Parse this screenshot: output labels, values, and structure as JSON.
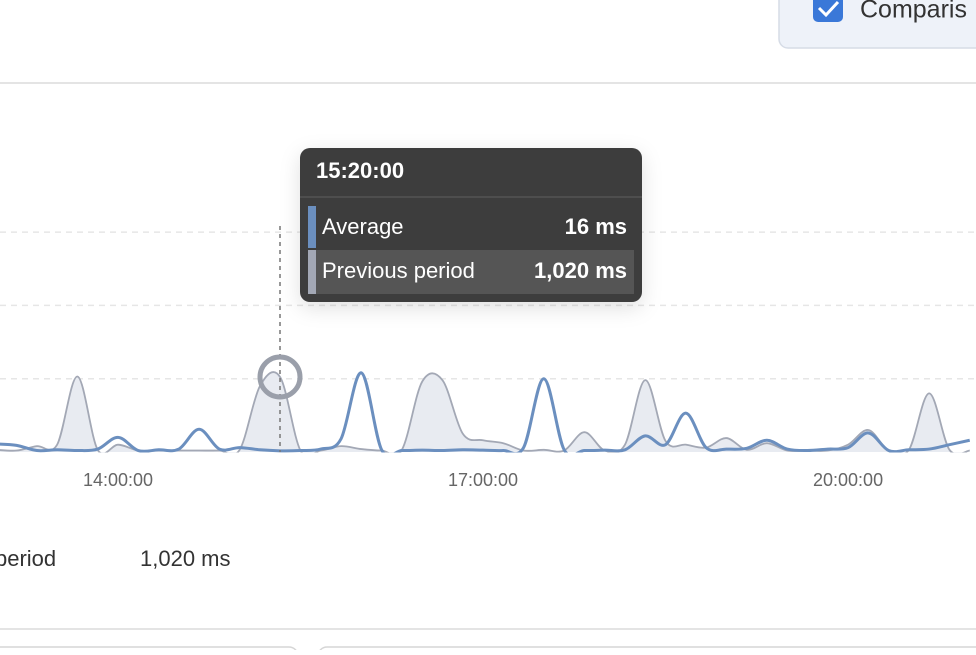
{
  "toolbar": {
    "comparison_label": "Comparis"
  },
  "chart_data": {
    "type": "line",
    "categories": [
      null,
      null,
      null,
      null,
      null,
      null,
      "14:00:00",
      null,
      null,
      null,
      null,
      null,
      null,
      null,
      null,
      null,
      null,
      null,
      null,
      null,
      null,
      null,
      null,
      null,
      "17:00:00",
      null,
      null,
      null,
      null,
      null,
      null,
      null,
      null,
      null,
      null,
      null,
      null,
      null,
      null,
      null,
      null,
      null,
      "20:00:00",
      null,
      null,
      null,
      null,
      null,
      null
    ],
    "series": [
      {
        "name": "Average",
        "color": "#6b8fbf",
        "values": [
          110,
          90,
          20,
          30,
          20,
          40,
          200,
          20,
          30,
          40,
          310,
          40,
          60,
          30,
          16,
          20,
          40,
          180,
          1080,
          30,
          20,
          25,
          20,
          30,
          25,
          20,
          60,
          1000,
          30,
          20,
          25,
          30,
          220,
          100,
          530,
          60,
          40,
          50,
          160,
          40,
          20,
          40,
          60,
          260,
          20,
          30,
          40,
          100,
          160
        ]
      },
      {
        "name": "Previous period",
        "color": "#a3a8b5",
        "values": [
          30,
          20,
          80,
          100,
          1030,
          30,
          100,
          20,
          20,
          20,
          20,
          20,
          30,
          900,
          1020,
          20,
          20,
          80,
          40,
          20,
          30,
          960,
          980,
          250,
          160,
          120,
          20,
          30,
          20,
          270,
          20,
          100,
          980,
          150,
          100,
          60,
          190,
          30,
          120,
          20,
          20,
          20,
          100,
          300,
          20,
          30,
          800,
          30,
          20
        ]
      }
    ],
    "ylim": [
      0,
      4000
    ],
    "yticks": [
      1000,
      2000,
      3000
    ],
    "grid": true
  },
  "tooltip": {
    "title": "15:20:00",
    "values": [
      "16 ms",
      "1,020 ms"
    ]
  },
  "summary": {
    "label": "period",
    "value": "1,020 ms"
  }
}
